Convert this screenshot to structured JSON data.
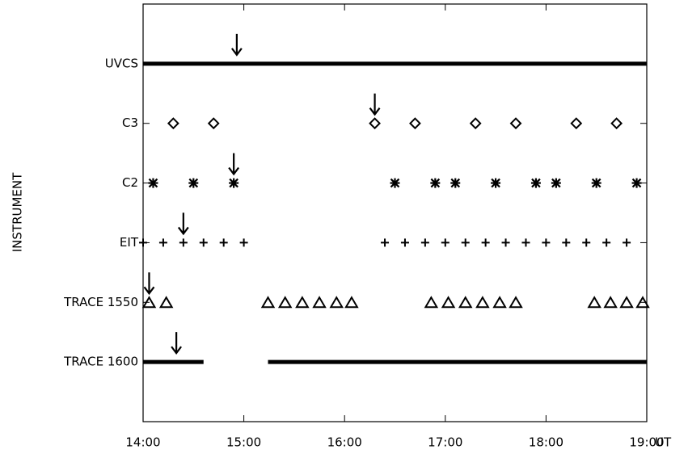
{
  "chart_data": {
    "type": "timeline",
    "ylabel": "INSTRUMENT",
    "xlabel": "UT",
    "xlim": [
      14,
      19
    ],
    "xticks": [
      {
        "value": 14,
        "label": "14:00"
      },
      {
        "value": 15,
        "label": "15:00"
      },
      {
        "value": 16,
        "label": "16:00"
      },
      {
        "value": 17,
        "label": "17:00"
      },
      {
        "value": 18,
        "label": "18:00"
      },
      {
        "value": 19,
        "label": "19:00"
      }
    ],
    "color": "#000000",
    "rows": [
      {
        "label": "UVCS",
        "marker": "line",
        "segments": [
          [
            14,
            19
          ]
        ],
        "arrow": 14.93
      },
      {
        "label": "C3",
        "marker": "diamond",
        "x": [
          14.3,
          14.7,
          16.3,
          16.7,
          17.3,
          17.7,
          18.3,
          18.7
        ],
        "arrow": 16.3
      },
      {
        "label": "C2",
        "marker": "asterisk",
        "x": [
          14.1,
          14.5,
          14.9,
          16.5,
          16.9,
          17.1,
          17.5,
          17.9,
          18.1,
          18.5,
          18.9
        ],
        "arrow": 14.9
      },
      {
        "label": "EIT",
        "marker": "plus",
        "x": [
          14.0,
          14.2,
          14.4,
          14.6,
          14.8,
          15.0,
          16.4,
          16.6,
          16.8,
          17.0,
          17.2,
          17.4,
          17.6,
          17.8,
          18.0,
          18.2,
          18.4,
          18.6,
          18.8
        ],
        "arrow": 14.4
      },
      {
        "label": "TRACE 1550",
        "marker": "triangle",
        "x": [
          14.06,
          14.23,
          15.24,
          15.41,
          15.58,
          15.75,
          15.92,
          16.07,
          16.86,
          17.03,
          17.2,
          17.37,
          17.54,
          17.7,
          18.48,
          18.64,
          18.8,
          18.96
        ],
        "arrow": 14.06
      },
      {
        "label": "TRACE 1600",
        "marker": "line",
        "segments": [
          [
            14,
            14.6
          ],
          [
            15.24,
            19
          ]
        ],
        "arrow": 14.33
      }
    ]
  }
}
